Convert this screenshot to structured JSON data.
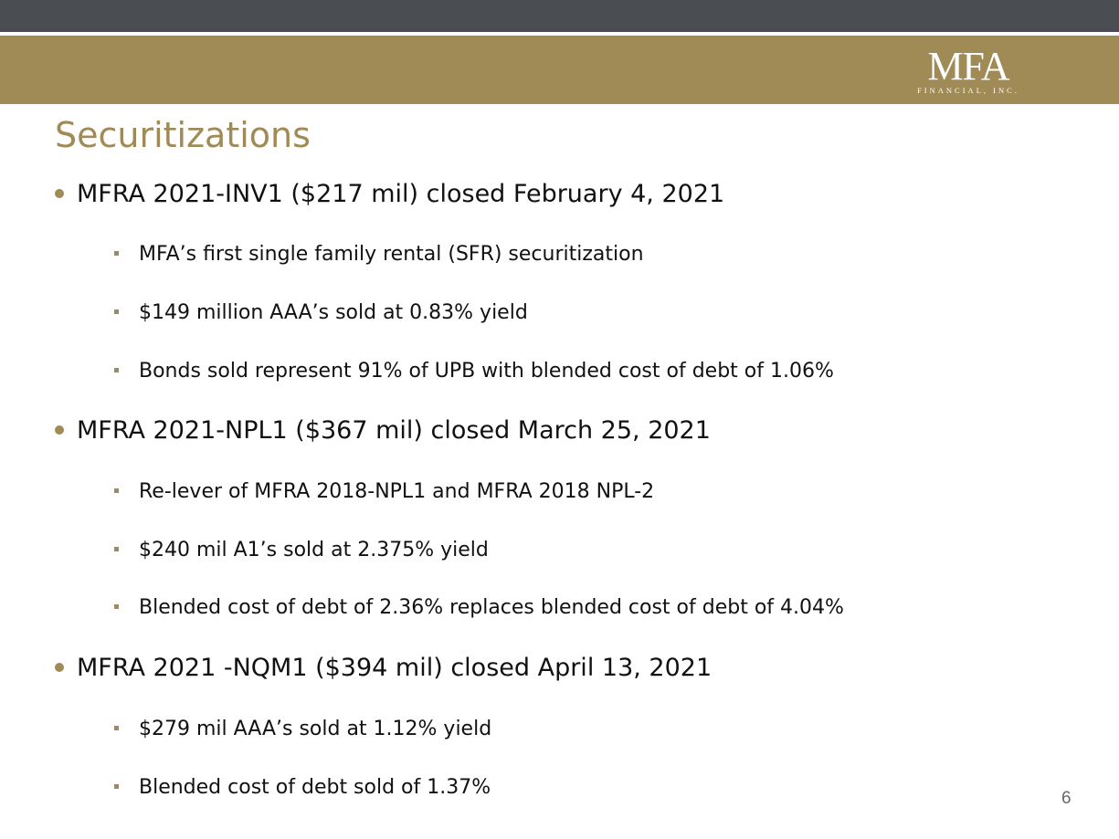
{
  "header": {
    "logo_main": "MFA",
    "logo_sub": "FINANCIAL, INC."
  },
  "slide": {
    "title": "Securitizations",
    "page_number": "6"
  },
  "bullets": [
    {
      "text": "MFRA 2021-INV1 ($217 mil) closed February 4, 2021",
      "sub": [
        "MFA’s first single family rental (SFR) securitization",
        "$149 million AAA’s sold at 0.83% yield",
        "Bonds sold represent 91% of UPB with blended cost of debt of 1.06%"
      ]
    },
    {
      "text": "MFRA 2021-NPL1 ($367 mil) closed March 25, 2021",
      "sub": [
        "Re-lever of MFRA 2018-NPL1 and MFRA 2018 NPL-2",
        "$240 mil A1’s sold  at 2.375% yield",
        "Blended cost of debt of 2.36% replaces blended cost of debt of 4.04%"
      ]
    },
    {
      "text": "MFRA 2021 -NQM1 ($394 mil) closed April 13, 2021",
      "sub": [
        "$279 mil AAA’s sold at 1.12% yield",
        "Blended  cost  of debt sold of 1.37%"
      ]
    }
  ],
  "colors": {
    "top_bar": "#4a4d52",
    "gold": "#a08a55",
    "text": "#111111"
  }
}
